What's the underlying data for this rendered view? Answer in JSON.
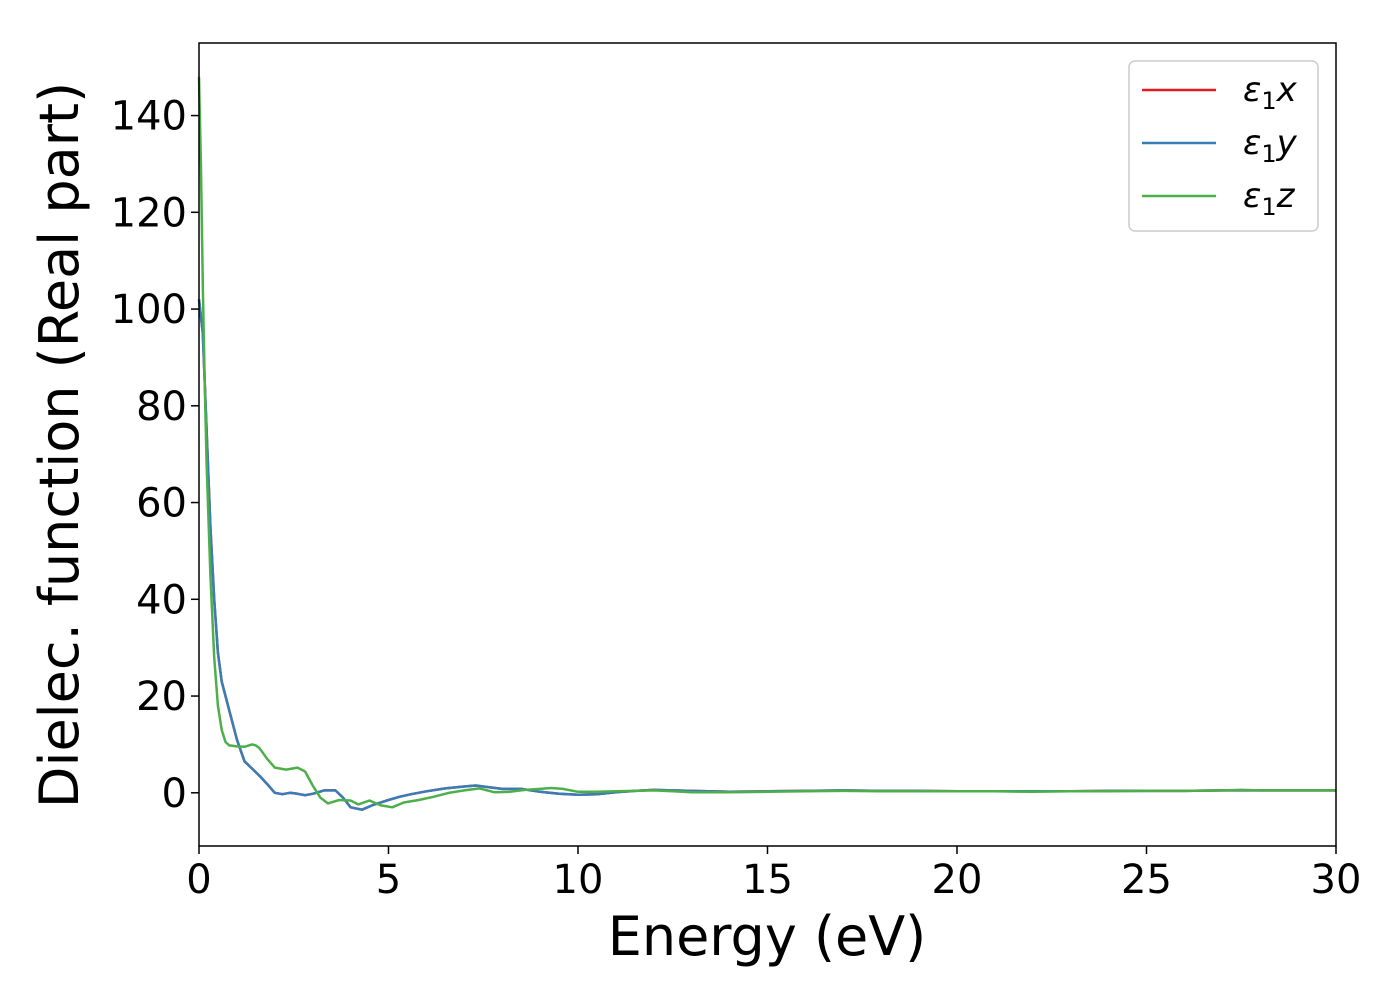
{
  "chart_data": {
    "type": "line",
    "xlabel": "Energy (eV)",
    "ylabel": "Dielec. function (Real part)",
    "xlim": [
      0,
      30
    ],
    "ylim": [
      -11,
      155
    ],
    "xticks": [
      0,
      5,
      10,
      15,
      20,
      25,
      30
    ],
    "yticks": [
      0,
      20,
      40,
      60,
      80,
      100,
      120,
      140
    ],
    "grid": false,
    "legend": {
      "position": "top-right"
    },
    "series": [
      {
        "name": "ε1x",
        "label_base": "ε",
        "label_sub": "1",
        "label_suffix": "x",
        "color": "#e41a1c",
        "x": [
          0,
          0.1,
          0.2,
          0.3,
          0.4,
          0.5,
          0.6,
          0.7,
          0.8,
          1.0,
          1.2,
          1.4,
          1.6,
          1.8,
          2.0,
          2.2,
          2.4,
          2.6,
          2.8,
          3.0,
          3.3,
          3.6,
          3.8,
          4.0,
          4.3,
          4.6,
          5.0,
          5.3,
          5.6,
          6.0,
          6.5,
          7.0,
          7.3,
          7.6,
          8.0,
          8.5,
          9.0,
          9.5,
          10.0,
          10.5,
          11.0,
          11.5,
          12.0,
          13.0,
          14.0,
          15.0,
          16.0,
          17.0,
          18.0,
          19.0,
          20.0,
          21.0,
          22.0,
          23.0,
          24.0,
          25.0,
          26.0,
          27.0,
          28.0,
          29.0,
          30.0
        ],
        "y": [
          102,
          95,
          75,
          55,
          40,
          29,
          23,
          20,
          17,
          11,
          6.5,
          5,
          3.5,
          1.8,
          0,
          -0.3,
          0,
          -0.2,
          -0.5,
          -0.2,
          0.5,
          0.5,
          -1,
          -3,
          -3.5,
          -2.5,
          -1.5,
          -0.8,
          -0.3,
          0.3,
          0.9,
          1.3,
          1.5,
          1.2,
          0.8,
          0.8,
          0.2,
          -0.2,
          -0.4,
          -0.3,
          0.1,
          0.4,
          0.6,
          0.4,
          0.2,
          0.3,
          0.4,
          0.5,
          0.4,
          0.4,
          0.3,
          0.3,
          0.3,
          0.3,
          0.4,
          0.4,
          0.4,
          0.5,
          0.5,
          0.5,
          0.5
        ]
      },
      {
        "name": "ε1y",
        "label_base": "ε",
        "label_sub": "1",
        "label_suffix": "y",
        "color": "#377eb8",
        "x": [
          0,
          0.1,
          0.2,
          0.3,
          0.4,
          0.5,
          0.6,
          0.7,
          0.8,
          1.0,
          1.2,
          1.4,
          1.6,
          1.8,
          2.0,
          2.2,
          2.4,
          2.6,
          2.8,
          3.0,
          3.3,
          3.6,
          3.8,
          4.0,
          4.3,
          4.6,
          5.0,
          5.3,
          5.6,
          6.0,
          6.5,
          7.0,
          7.3,
          7.6,
          8.0,
          8.5,
          9.0,
          9.5,
          10.0,
          10.5,
          11.0,
          11.5,
          12.0,
          13.0,
          14.0,
          15.0,
          16.0,
          17.0,
          18.0,
          19.0,
          20.0,
          21.0,
          22.0,
          23.0,
          24.0,
          25.0,
          26.0,
          27.0,
          28.0,
          29.0,
          30.0
        ],
        "y": [
          102,
          95,
          75,
          55,
          40,
          29,
          23,
          20,
          17,
          11,
          6.5,
          5,
          3.5,
          1.8,
          0,
          -0.3,
          0,
          -0.2,
          -0.5,
          -0.2,
          0.5,
          0.5,
          -1,
          -3,
          -3.5,
          -2.5,
          -1.5,
          -0.8,
          -0.3,
          0.3,
          0.9,
          1.3,
          1.5,
          1.2,
          0.8,
          0.8,
          0.2,
          -0.2,
          -0.4,
          -0.3,
          0.1,
          0.4,
          0.6,
          0.4,
          0.2,
          0.3,
          0.4,
          0.5,
          0.4,
          0.4,
          0.3,
          0.3,
          0.3,
          0.3,
          0.4,
          0.4,
          0.4,
          0.5,
          0.5,
          0.5,
          0.5
        ]
      },
      {
        "name": "ε1z",
        "label_base": "ε",
        "label_sub": "1",
        "label_suffix": "z",
        "color": "#4daf4a",
        "x": [
          0,
          0.05,
          0.1,
          0.15,
          0.2,
          0.3,
          0.4,
          0.5,
          0.6,
          0.7,
          0.8,
          1.0,
          1.2,
          1.4,
          1.5,
          1.6,
          1.8,
          2.0,
          2.3,
          2.6,
          2.8,
          3.0,
          3.2,
          3.4,
          3.7,
          4.0,
          4.2,
          4.5,
          4.8,
          5.1,
          5.4,
          5.8,
          6.2,
          6.6,
          7.0,
          7.4,
          7.8,
          8.2,
          8.6,
          9.0,
          9.3,
          9.6,
          10.0,
          10.5,
          11.0,
          11.5,
          12.0,
          12.5,
          13.0,
          14.0,
          15.0,
          16.0,
          17.0,
          18.0,
          19.0,
          20.0,
          21.0,
          22.0,
          23.0,
          24.0,
          25.0,
          26.0,
          27.0,
          27.5,
          28.0,
          29.0,
          30.0
        ],
        "y": [
          148,
          130,
          105,
          85,
          68,
          45,
          28,
          18,
          13,
          10.5,
          9.8,
          9.6,
          9.5,
          10,
          9.8,
          9.2,
          7,
          5.2,
          4.8,
          5.2,
          4.4,
          1.5,
          -1,
          -2.2,
          -1.5,
          -1.6,
          -2.4,
          -1.6,
          -2.6,
          -3,
          -2,
          -1.5,
          -0.8,
          0,
          0.5,
          0.9,
          0.1,
          0.2,
          0.6,
          0.8,
          1,
          0.8,
          0.2,
          0.2,
          0.3,
          0.4,
          0.5,
          0.3,
          0.1,
          0.1,
          0.2,
          0.3,
          0.4,
          0.3,
          0.3,
          0.3,
          0.3,
          0.2,
          0.3,
          0.3,
          0.4,
          0.4,
          0.5,
          0.6,
          0.5,
          0.5,
          0.5
        ]
      }
    ]
  }
}
